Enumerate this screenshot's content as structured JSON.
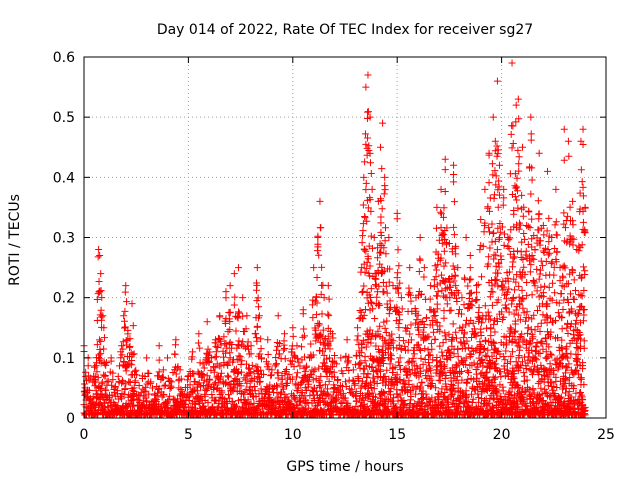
{
  "chart_data": {
    "type": "scatter",
    "title": "Day 014 of 2022, Rate Of TEC Index for receiver sg27",
    "xlabel": "GPS time / hours",
    "ylabel": "ROTI / TECUs",
    "xlim": [
      0,
      25
    ],
    "ylim": [
      0,
      0.6
    ],
    "xticks": [
      "0",
      "5",
      "10",
      "15",
      "20",
      "25"
    ],
    "yticks": [
      "0",
      "0.1",
      "0.2",
      "0.3",
      "0.4",
      "0.5",
      "0.6"
    ],
    "grid": true,
    "legend": "none",
    "marker": "plus",
    "color": "#ff0000",
    "series": [
      {
        "points": [
          [
            0.0,
            0.12
          ],
          [
            0.05,
            0.05
          ],
          [
            0.1,
            0.03
          ],
          [
            0.2,
            0.1
          ],
          [
            0.3,
            0.02
          ],
          [
            0.5,
            0.06
          ],
          [
            0.6,
            0.04
          ],
          [
            0.7,
            0.28
          ],
          [
            0.75,
            0.27
          ],
          [
            0.8,
            0.24
          ],
          [
            0.85,
            0.2
          ],
          [
            0.9,
            0.17
          ],
          [
            0.95,
            0.15
          ],
          [
            1.0,
            0.09
          ],
          [
            1.1,
            0.06
          ],
          [
            1.2,
            0.03
          ],
          [
            1.3,
            0.1
          ],
          [
            1.5,
            0.05
          ],
          [
            1.6,
            0.04
          ],
          [
            1.8,
            0.12
          ],
          [
            1.9,
            0.17
          ],
          [
            2.0,
            0.22
          ],
          [
            2.1,
            0.13
          ],
          [
            2.2,
            0.09
          ],
          [
            2.3,
            0.19
          ],
          [
            2.4,
            0.05
          ],
          [
            2.6,
            0.03
          ],
          [
            2.8,
            0.07
          ],
          [
            3.0,
            0.1
          ],
          [
            3.2,
            0.06
          ],
          [
            3.4,
            0.04
          ],
          [
            3.6,
            0.12
          ],
          [
            3.8,
            0.08
          ],
          [
            4.0,
            0.1
          ],
          [
            4.2,
            0.06
          ],
          [
            4.4,
            0.13
          ],
          [
            4.6,
            0.08
          ],
          [
            4.8,
            0.04
          ],
          [
            5.0,
            0.07
          ],
          [
            5.2,
            0.11
          ],
          [
            5.5,
            0.14
          ],
          [
            5.7,
            0.09
          ],
          [
            5.9,
            0.16
          ],
          [
            6.1,
            0.1
          ],
          [
            6.3,
            0.13
          ],
          [
            6.5,
            0.17
          ],
          [
            6.8,
            0.21
          ],
          [
            7.0,
            0.22
          ],
          [
            7.2,
            0.24
          ],
          [
            7.4,
            0.25
          ],
          [
            7.6,
            0.2
          ],
          [
            7.8,
            0.17
          ],
          [
            8.0,
            0.12
          ],
          [
            8.3,
            0.25
          ],
          [
            8.5,
            0.1
          ],
          [
            8.8,
            0.13
          ],
          [
            9.0,
            0.08
          ],
          [
            9.3,
            0.17
          ],
          [
            9.6,
            0.14
          ],
          [
            10.0,
            0.15
          ],
          [
            10.2,
            0.12
          ],
          [
            10.5,
            0.18
          ],
          [
            10.8,
            0.1
          ],
          [
            11.0,
            0.25
          ],
          [
            11.2,
            0.3
          ],
          [
            11.3,
            0.36
          ],
          [
            11.5,
            0.2
          ],
          [
            11.7,
            0.22
          ],
          [
            11.9,
            0.14
          ],
          [
            12.1,
            0.09
          ],
          [
            12.3,
            0.1
          ],
          [
            12.6,
            0.13
          ],
          [
            12.9,
            0.08
          ],
          [
            13.1,
            0.15
          ],
          [
            13.3,
            0.25
          ],
          [
            13.4,
            0.4
          ],
          [
            13.5,
            0.55
          ],
          [
            13.6,
            0.57
          ],
          [
            13.7,
            0.5
          ],
          [
            13.8,
            0.38
          ],
          [
            13.9,
            0.3
          ],
          [
            14.0,
            0.24
          ],
          [
            14.1,
            0.36
          ],
          [
            14.2,
            0.45
          ],
          [
            14.3,
            0.49
          ],
          [
            14.4,
            0.4
          ],
          [
            14.6,
            0.3
          ],
          [
            14.8,
            0.22
          ],
          [
            15.0,
            0.34
          ],
          [
            15.2,
            0.2
          ],
          [
            15.4,
            0.15
          ],
          [
            15.6,
            0.25
          ],
          [
            15.9,
            0.2
          ],
          [
            16.1,
            0.3
          ],
          [
            16.3,
            0.25
          ],
          [
            16.6,
            0.22
          ],
          [
            16.9,
            0.35
          ],
          [
            17.1,
            0.38
          ],
          [
            17.3,
            0.43
          ],
          [
            17.5,
            0.29
          ],
          [
            17.7,
            0.42
          ],
          [
            17.9,
            0.25
          ],
          [
            18.1,
            0.2
          ],
          [
            18.3,
            0.3
          ],
          [
            18.5,
            0.27
          ],
          [
            18.8,
            0.22
          ],
          [
            19.0,
            0.33
          ],
          [
            19.2,
            0.38
          ],
          [
            19.4,
            0.44
          ],
          [
            19.6,
            0.5
          ],
          [
            19.7,
            0.46
          ],
          [
            19.8,
            0.56
          ],
          [
            19.9,
            0.42
          ],
          [
            20.1,
            0.38
          ],
          [
            20.3,
            0.3
          ],
          [
            20.5,
            0.59
          ],
          [
            20.7,
            0.52
          ],
          [
            20.8,
            0.53
          ],
          [
            21.0,
            0.45
          ],
          [
            21.2,
            0.32
          ],
          [
            21.4,
            0.5
          ],
          [
            21.6,
            0.28
          ],
          [
            21.8,
            0.44
          ],
          [
            22.0,
            0.32
          ],
          [
            22.2,
            0.41
          ],
          [
            22.4,
            0.3
          ],
          [
            22.6,
            0.38
          ],
          [
            22.8,
            0.25
          ],
          [
            23.0,
            0.48
          ],
          [
            23.2,
            0.46
          ],
          [
            23.4,
            0.36
          ],
          [
            23.6,
            0.28
          ],
          [
            23.8,
            0.46
          ],
          [
            23.9,
            0.48
          ],
          [
            24.0,
            0.35
          ]
        ]
      }
    ]
  }
}
